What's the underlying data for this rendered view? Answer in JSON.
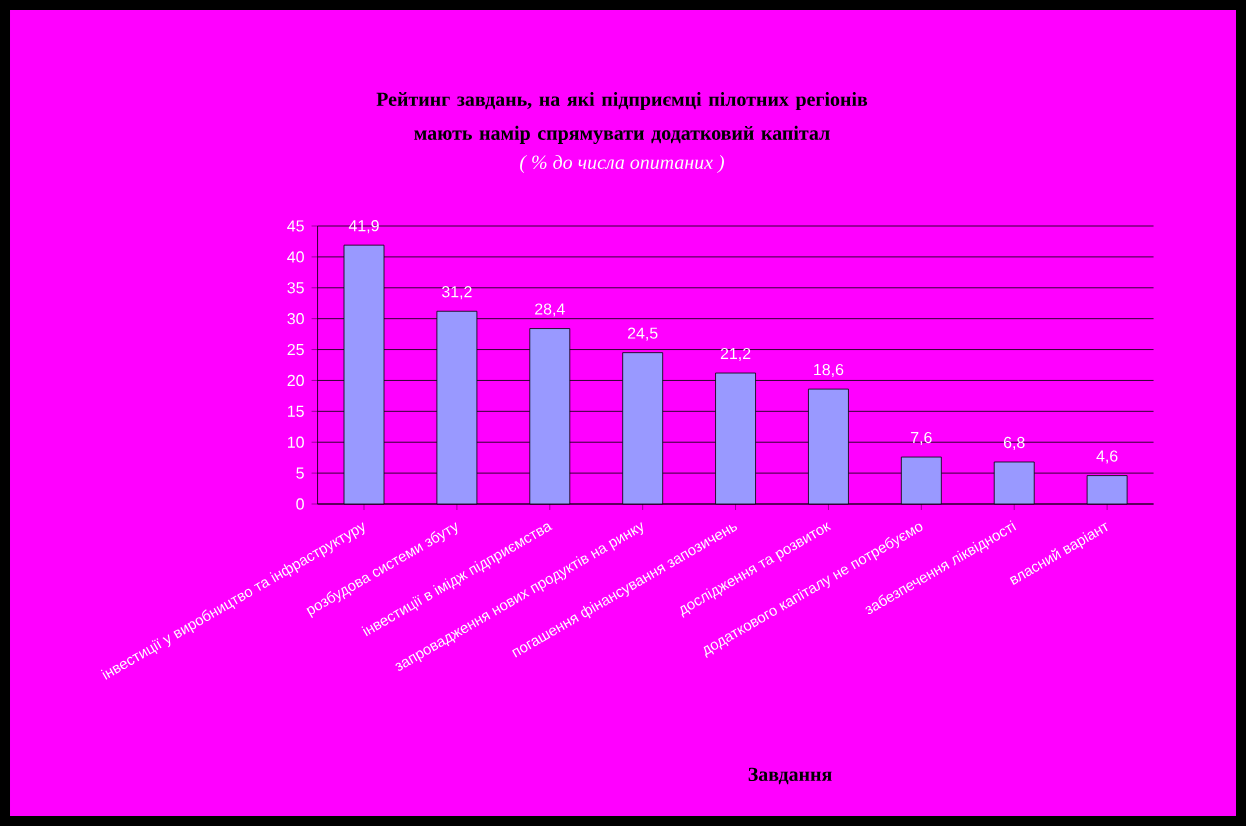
{
  "chart_data": {
    "type": "bar",
    "title": "Рейтинг завдань, на які підприємці пілотних регіонів мають намір спрямувати додатковий капітал",
    "subtitle": "( % до числа опитаних )",
    "xlabel": "Завдання",
    "categories": [
      "інвестиції у виробництво та інфраструктуру",
      "розбудова системи збуту",
      "інвестиції в імідж підприємства",
      "запровадження нових продуктів на ринку",
      "погашення фінансування запозичень",
      "дослідження та розвиток",
      "додаткового капіталу не потребуємо",
      "забезпечення ліквідності",
      "власний варіант"
    ],
    "values": [
      41.9,
      31.2,
      28.4,
      24.5,
      21.2,
      18.6,
      7.6,
      6.8,
      4.6
    ],
    "value_labels": [
      "41,9",
      "31,2",
      "28,4",
      "24,5",
      "21,2",
      "18,6",
      "7,6",
      "6,8",
      "4,6"
    ],
    "color": "#9999ff",
    "ylim": [
      0,
      45
    ],
    "yticks": [
      0,
      5,
      10,
      15,
      20,
      25,
      30,
      35,
      40,
      45
    ],
    "grid": "y"
  }
}
